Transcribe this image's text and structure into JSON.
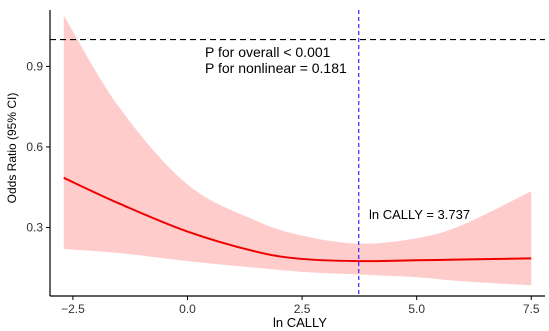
{
  "chart_data": {
    "type": "line",
    "title": "",
    "xlabel": "ln CALLY",
    "ylabel": "Odds Ratio (95% CI)",
    "xlim": [
      -3.0,
      7.8
    ],
    "ylim": [
      0.045,
      1.11
    ],
    "x_ticks": [
      -2.5,
      0.0,
      2.5,
      5.0,
      7.5
    ],
    "x_tick_labels": [
      "−2.5",
      "0.0",
      "2.5",
      "5.0",
      "7.5"
    ],
    "y_ticks": [
      0.3,
      0.6,
      0.9
    ],
    "y_tick_labels": [
      "0.3",
      "0.6",
      "0.9"
    ],
    "grid": false,
    "reference_line": {
      "y": 1.0,
      "style": "dashed",
      "color": "#000000"
    },
    "vertical_line": {
      "x": 3.737,
      "style": "dashed",
      "color": "#0000ff",
      "label": "ln CALLY = 3.737"
    },
    "annotations": [
      "P for overall < 0.001",
      "P for nonlinear = 0.181"
    ],
    "series": [
      {
        "color": "#ee0000",
        "x": [
          -2.7,
          -1.5,
          0,
          1.5,
          2.5,
          3.737,
          5,
          6,
          7.5
        ],
        "values": [
          0.485,
          0.39,
          0.285,
          0.21,
          0.183,
          0.175,
          0.178,
          0.181,
          0.185
        ],
        "lower": [
          0.22,
          0.205,
          0.175,
          0.15,
          0.135,
          0.125,
          0.115,
          0.1,
          0.085
        ],
        "upper": [
          1.09,
          0.75,
          0.46,
          0.325,
          0.27,
          0.24,
          0.26,
          0.31,
          0.435
        ]
      }
    ],
    "ci_fill_color": "#ffcccc"
  }
}
